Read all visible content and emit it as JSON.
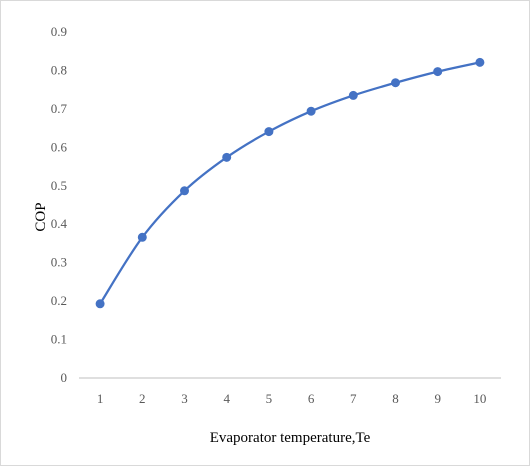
{
  "chart_data": {
    "type": "line",
    "title": "",
    "xlabel": "Evaporator temperature,Te",
    "ylabel": "COP",
    "x": [
      1,
      2,
      3,
      4,
      5,
      6,
      7,
      8,
      9,
      10
    ],
    "series": [
      {
        "values": [
          0.193,
          0.366,
          0.487,
          0.574,
          0.641,
          0.694,
          0.735,
          0.768,
          0.797,
          0.821
        ],
        "color": "#4472c4",
        "marker": "circle"
      }
    ],
    "ylim": [
      0,
      0.9
    ],
    "yticks": [
      "0",
      "0.1",
      "0.2",
      "0.3",
      "0.4",
      "0.5",
      "0.6",
      "0.7",
      "0.8",
      "0.9"
    ],
    "xticks": [
      "1",
      "2",
      "3",
      "4",
      "5",
      "6",
      "7",
      "8",
      "9",
      "10"
    ],
    "grid": false,
    "legend": "none"
  }
}
